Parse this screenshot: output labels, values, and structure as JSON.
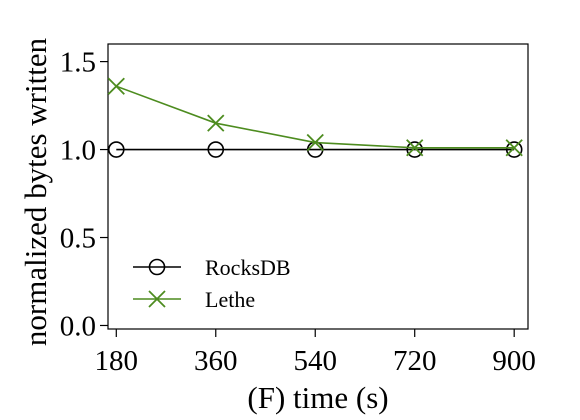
{
  "chart_data": {
    "type": "line",
    "title": "",
    "xlabel": "(F) time (s)",
    "ylabel": "normalized bytes written",
    "x": [
      180,
      360,
      540,
      720,
      900
    ],
    "xticks": [
      "180",
      "360",
      "540",
      "720",
      "900"
    ],
    "yticks": [
      "0.0",
      "0.5",
      "1.0",
      "1.5"
    ],
    "ytick_values": [
      0.0,
      0.5,
      1.0,
      1.5
    ],
    "xlim": [
      165,
      925
    ],
    "ylim": [
      -0.02,
      1.6
    ],
    "grid": false,
    "legend_placement": "bottom-left",
    "series": [
      {
        "name": "RocksDB",
        "marker": "circle",
        "color": "#000000",
        "values": [
          1.0,
          1.0,
          1.0,
          1.0,
          1.0
        ]
      },
      {
        "name": "Lethe",
        "marker": "x",
        "color": "#4d8c1f",
        "values": [
          1.36,
          1.15,
          1.04,
          1.01,
          1.01
        ]
      }
    ]
  }
}
